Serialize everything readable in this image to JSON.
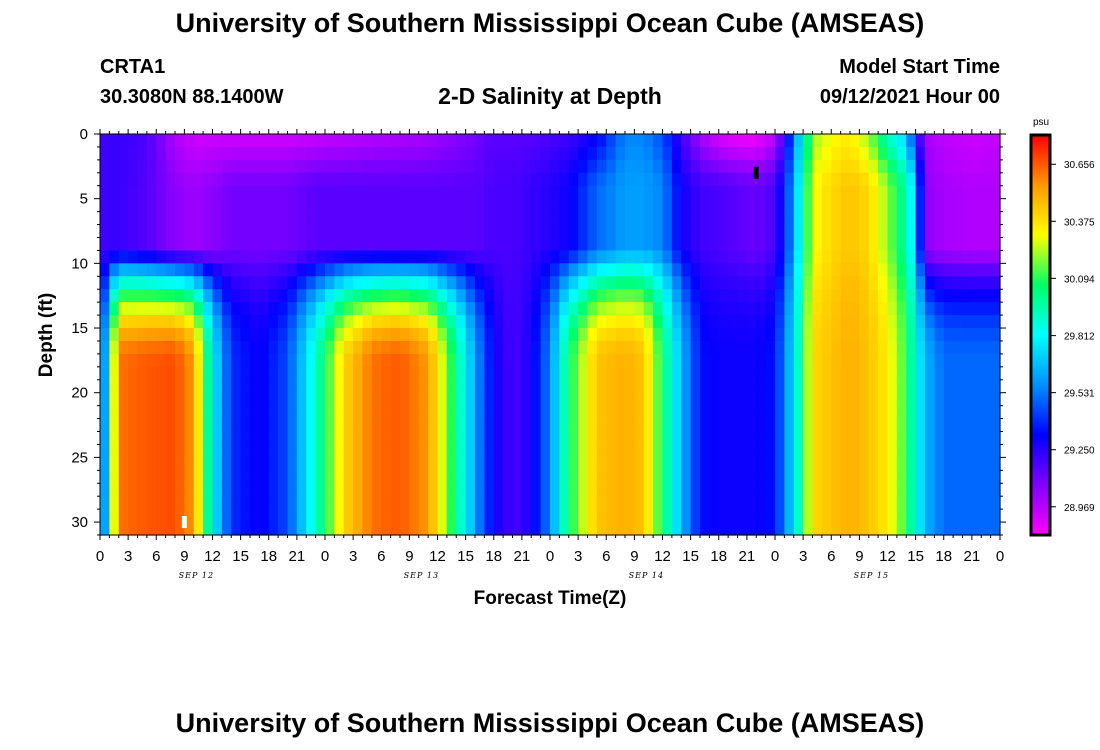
{
  "header": {
    "title": "University of Southern Mississippi Ocean Cube (AMSEAS)",
    "station_id": "CRTA1",
    "station_coords": "30.3080N  88.1400W",
    "plot_title": "2-D Salinity at Depth",
    "model_start_label": "Model Start Time",
    "model_start_value": "09/12/2021 Hour 00"
  },
  "footer": {
    "title": "University of Southern Mississippi Ocean Cube (AMSEAS)"
  },
  "chart_data": {
    "type": "heatmap",
    "title": "2-D Salinity at Depth",
    "xlabel": "Forecast Time(Z)",
    "ylabel": "Depth (ft)",
    "x_tick_labels": [
      "0",
      "3",
      "6",
      "9",
      "12",
      "15",
      "18",
      "21",
      "0",
      "3",
      "6",
      "9",
      "12",
      "15",
      "18",
      "21",
      "0",
      "3",
      "6",
      "9",
      "12",
      "15",
      "18",
      "21",
      "0",
      "3",
      "6",
      "9",
      "12",
      "15",
      "18",
      "21",
      "0"
    ],
    "day_labels": [
      {
        "label": "SEP 12",
        "hour": 9
      },
      {
        "label": "SEP 13",
        "hour": 33
      },
      {
        "label": "SEP 14",
        "hour": 57
      },
      {
        "label": "SEP 15",
        "hour": 81
      }
    ],
    "y_tick_labels": [
      "0",
      "5",
      "10",
      "15",
      "20",
      "25",
      "30"
    ],
    "xlim_hours": [
      0,
      96
    ],
    "ylim_ft": [
      0,
      31
    ],
    "y_inverted": true,
    "colorbar": {
      "unit": "psu",
      "tick_labels": [
        "30.656",
        "30.375",
        "30.094",
        "29.812",
        "29.531",
        "29.250",
        "28.969"
      ],
      "range": [
        28.83,
        30.8
      ],
      "colors": [
        "#ff00ff",
        "#8000ff",
        "#0000ff",
        "#0090ff",
        "#00ffff",
        "#00ff66",
        "#ffff00",
        "#ff9900",
        "#ff0000"
      ]
    },
    "column_profiles": [
      {
        "hour": 0,
        "surface": 29.2,
        "mid": 29.2,
        "bottom": 29.28
      },
      {
        "hour": 2,
        "surface": 29.22,
        "mid": 29.22,
        "bottom": 30.62
      },
      {
        "hour": 5,
        "surface": 29.18,
        "mid": 29.16,
        "bottom": 30.66
      },
      {
        "hour": 8,
        "surface": 28.98,
        "mid": 29.05,
        "bottom": 30.68
      },
      {
        "hour": 10,
        "surface": 28.92,
        "mid": 29.02,
        "bottom": 30.55
      },
      {
        "hour": 12,
        "surface": 28.92,
        "mid": 29.05,
        "bottom": 29.8
      },
      {
        "hour": 14,
        "surface": 28.92,
        "mid": 29.1,
        "bottom": 29.4
      },
      {
        "hour": 17,
        "surface": 28.92,
        "mid": 29.1,
        "bottom": 29.3
      },
      {
        "hour": 20,
        "surface": 28.92,
        "mid": 29.1,
        "bottom": 29.45
      },
      {
        "hour": 23,
        "surface": 28.93,
        "mid": 29.15,
        "bottom": 29.9
      },
      {
        "hour": 26,
        "surface": 28.95,
        "mid": 29.15,
        "bottom": 30.4
      },
      {
        "hour": 29,
        "surface": 28.97,
        "mid": 29.15,
        "bottom": 30.62
      },
      {
        "hour": 32,
        "surface": 28.98,
        "mid": 29.15,
        "bottom": 30.66
      },
      {
        "hour": 35,
        "surface": 29.0,
        "mid": 29.15,
        "bottom": 30.55
      },
      {
        "hour": 38,
        "surface": 29.05,
        "mid": 29.15,
        "bottom": 30.0
      },
      {
        "hour": 40,
        "surface": 29.1,
        "mid": 29.15,
        "bottom": 29.6
      },
      {
        "hour": 42,
        "surface": 29.15,
        "mid": 29.18,
        "bottom": 29.3
      },
      {
        "hour": 44,
        "surface": 29.15,
        "mid": 29.18,
        "bottom": 29.18
      },
      {
        "hour": 46,
        "surface": 29.15,
        "mid": 29.22,
        "bottom": 29.28
      },
      {
        "hour": 48,
        "surface": 29.18,
        "mid": 29.25,
        "bottom": 29.55
      },
      {
        "hour": 50,
        "surface": 29.2,
        "mid": 29.3,
        "bottom": 30.05
      },
      {
        "hour": 53,
        "surface": 29.3,
        "mid": 29.5,
        "bottom": 30.45
      },
      {
        "hour": 56,
        "surface": 29.55,
        "mid": 29.6,
        "bottom": 30.5
      },
      {
        "hour": 58,
        "surface": 29.55,
        "mid": 29.6,
        "bottom": 30.45
      },
      {
        "hour": 60,
        "surface": 29.45,
        "mid": 29.55,
        "bottom": 30.05
      },
      {
        "hour": 62,
        "surface": 29.2,
        "mid": 29.3,
        "bottom": 29.65
      },
      {
        "hour": 64,
        "surface": 29.0,
        "mid": 29.2,
        "bottom": 29.35
      },
      {
        "hour": 66,
        "surface": 28.9,
        "mid": 29.18,
        "bottom": 29.3
      },
      {
        "hour": 68,
        "surface": 28.85,
        "mid": 29.15,
        "bottom": 29.3
      },
      {
        "hour": 70,
        "surface": 28.85,
        "mid": 29.12,
        "bottom": 29.3
      },
      {
        "hour": 72,
        "surface": 28.95,
        "mid": 29.18,
        "bottom": 29.35
      },
      {
        "hour": 74,
        "surface": 29.5,
        "mid": 29.6,
        "bottom": 29.75
      },
      {
        "hour": 76,
        "surface": 30.2,
        "mid": 30.3,
        "bottom": 30.4
      },
      {
        "hour": 78,
        "surface": 30.3,
        "mid": 30.4,
        "bottom": 30.45
      },
      {
        "hour": 80,
        "surface": 30.35,
        "mid": 30.45,
        "bottom": 30.5
      },
      {
        "hour": 82,
        "surface": 30.2,
        "mid": 30.4,
        "bottom": 30.45
      },
      {
        "hour": 84,
        "surface": 29.9,
        "mid": 30.2,
        "bottom": 30.35
      },
      {
        "hour": 86,
        "surface": 29.7,
        "mid": 29.95,
        "bottom": 30.1
      },
      {
        "hour": 87,
        "surface": 29.3,
        "mid": 29.7,
        "bottom": 29.85
      },
      {
        "hour": 88,
        "surface": 29.0,
        "mid": 29.05,
        "bottom": 29.65
      },
      {
        "hour": 90,
        "surface": 28.95,
        "mid": 29.0,
        "bottom": 29.5
      },
      {
        "hour": 93,
        "surface": 28.93,
        "mid": 28.98,
        "bottom": 29.5
      },
      {
        "hour": 96,
        "surface": 28.95,
        "mid": 28.98,
        "bottom": 29.5
      }
    ],
    "markers": [
      {
        "name": "minimum-marker",
        "hour": 70,
        "depth_ft": 3,
        "color": "#000000"
      },
      {
        "name": "maximum-marker",
        "hour": 9,
        "depth_ft": 30,
        "color": "#ffffff"
      }
    ]
  }
}
